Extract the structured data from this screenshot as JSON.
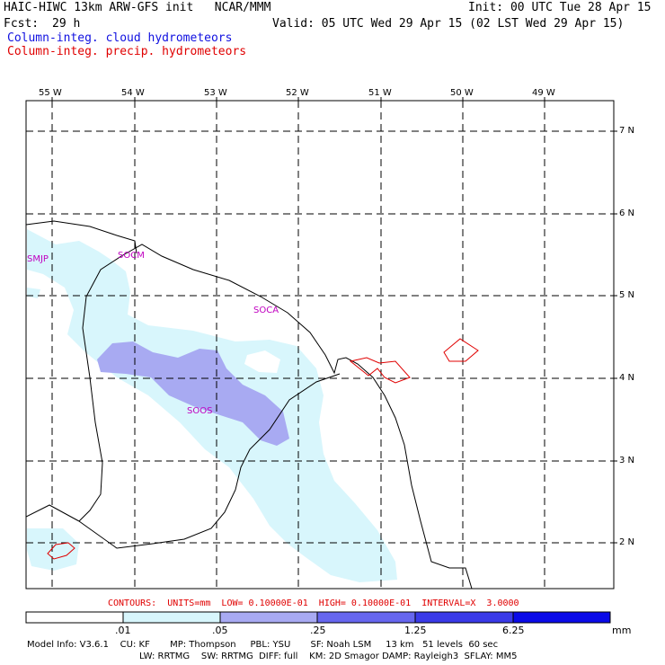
{
  "header": {
    "model_title": "HAIC-HIWC 13km ARW-GFS init   NCAR/MMM",
    "init": "Init: 00 UTC Tue 28 Apr 15",
    "fcst_label": "Fcst:",
    "fcst_value": "29 h",
    "valid": "Valid: 05 UTC Wed 29 Apr 15 (02 LST Wed 29 Apr 15)",
    "legend_cloud": "Column-integ. cloud hydrometeors",
    "legend_precip": "Column-integ. precip. hydrometeors"
  },
  "map": {
    "lon_labels": [
      "55 W",
      "54 W",
      "53 W",
      "52 W",
      "51 W",
      "50 W",
      "49 W"
    ],
    "lat_labels": [
      "7 N",
      "6 N",
      "5 N",
      "4 N",
      "3 N",
      "2 N"
    ],
    "stations": [
      "SMJP",
      "SOCM",
      "SOCA",
      "SOOS"
    ],
    "colors": {
      "cloud_light": "#d8f6fc",
      "cloud_mid": "#a8aaf2",
      "contour": "#e00000",
      "grid": "#000000"
    }
  },
  "contour_info": "CONTOURS:  UNITS=mm  LOW= 0.10000E-01  HIGH= 0.10000E-01  INTERVAL=X  3.0000",
  "colorbar": {
    "labels": [
      ".01",
      ".05",
      ".25",
      "1.25",
      "6.25"
    ],
    "units": "mm",
    "colors": [
      "#ffffff",
      "#d8f6fc",
      "#a8aaf2",
      "#6666ee",
      "#3a3ae8",
      "#0a0ae8"
    ]
  },
  "model_info": {
    "line1": "Model Info: V3.6.1    CU: KF       MP: Thompson     PBL: YSU       SF: Noah LSM     13 km   51 levels  60 sec",
    "line2": "LW: RRTMG    SW: RRTMG  DIFF: full    KM: 2D Smagor DAMP: Rayleigh3  SFLAY: MM5"
  }
}
